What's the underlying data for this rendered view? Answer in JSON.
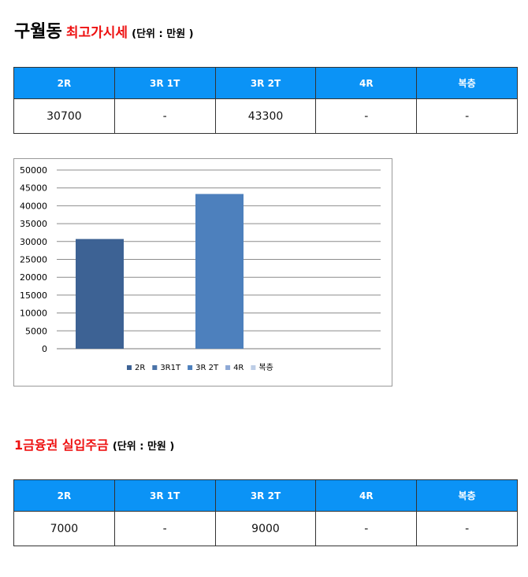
{
  "section1": {
    "place": "구월동",
    "title": "최고가시세",
    "unit": "(단위 : 만원 )",
    "columns": [
      "2R",
      "3R 1T",
      "3R 2T",
      "4R",
      "복층"
    ],
    "row": [
      "30700",
      "-",
      "43300",
      "-",
      "-"
    ]
  },
  "chart_data": {
    "type": "bar",
    "title": "",
    "xlabel": "",
    "ylabel": "",
    "ylim": [
      0,
      50000
    ],
    "yticks": [
      0,
      5000,
      10000,
      15000,
      20000,
      25000,
      30000,
      35000,
      40000,
      45000,
      50000
    ],
    "grid": true,
    "legend_position": "bottom",
    "series": [
      {
        "name": "2R",
        "values": [
          30700
        ],
        "color": "#3d6294"
      },
      {
        "name": "3R1T",
        "values": [
          null
        ],
        "color": "#4a73a8"
      },
      {
        "name": "3R 2T",
        "values": [
          43300
        ],
        "color": "#4d80bd"
      },
      {
        "name": "4R",
        "values": [
          null
        ],
        "color": "#8ea9d6"
      },
      {
        "name": "복층",
        "values": [
          null
        ],
        "color": "#bccde6"
      }
    ]
  },
  "section2": {
    "title": "1금융권 실입주금",
    "unit": "(단위 : 만원 )",
    "columns": [
      "2R",
      "3R 1T",
      "3R 2T",
      "4R",
      "복층"
    ],
    "row": [
      "7000",
      "-",
      "9000",
      "-",
      "-"
    ]
  }
}
